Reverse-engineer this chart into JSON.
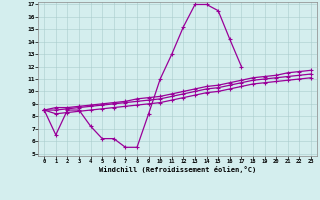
{
  "xlabel": "Windchill (Refroidissement éolien,°C)",
  "background_color": "#d4eeee",
  "line_color": "#990099",
  "xlim": [
    -0.5,
    23.5
  ],
  "ylim": [
    4.8,
    17.2
  ],
  "xticks": [
    0,
    1,
    2,
    3,
    4,
    5,
    6,
    7,
    8,
    9,
    10,
    11,
    12,
    13,
    14,
    15,
    16,
    17,
    18,
    19,
    20,
    21,
    22,
    23
  ],
  "yticks": [
    5,
    6,
    7,
    8,
    9,
    10,
    11,
    12,
    13,
    14,
    15,
    16,
    17
  ],
  "hours": [
    0,
    1,
    2,
    3,
    4,
    5,
    6,
    7,
    8,
    9,
    10,
    11,
    12,
    13,
    14,
    15,
    16,
    17,
    18,
    19,
    20,
    21,
    22,
    23
  ],
  "curve_main": [
    8.5,
    6.5,
    8.5,
    8.5,
    7.2,
    6.2,
    6.2,
    5.5,
    5.5,
    8.2,
    11.0,
    13.0,
    15.2,
    17.0,
    17.0,
    16.5,
    14.2,
    12.0,
    null,
    null,
    null,
    null,
    null,
    null
  ],
  "curve_line1": [
    8.5,
    8.7,
    8.7,
    8.8,
    8.9,
    9.0,
    9.1,
    9.2,
    9.4,
    9.5,
    9.6,
    9.8,
    10.0,
    10.2,
    10.4,
    10.5,
    10.7,
    10.9,
    11.1,
    11.2,
    11.3,
    11.5,
    11.6,
    11.7
  ],
  "curve_line2": [
    8.5,
    8.5,
    8.6,
    8.7,
    8.8,
    8.9,
    9.0,
    9.1,
    9.2,
    9.3,
    9.4,
    9.6,
    9.8,
    10.0,
    10.2,
    10.3,
    10.5,
    10.7,
    10.9,
    11.0,
    11.1,
    11.2,
    11.3,
    11.4
  ],
  "curve_line3": [
    8.5,
    8.2,
    8.3,
    8.4,
    8.5,
    8.6,
    8.7,
    8.8,
    8.9,
    9.0,
    9.1,
    9.3,
    9.5,
    9.7,
    9.9,
    10.0,
    10.2,
    10.4,
    10.6,
    10.7,
    10.8,
    10.9,
    11.0,
    11.1
  ]
}
